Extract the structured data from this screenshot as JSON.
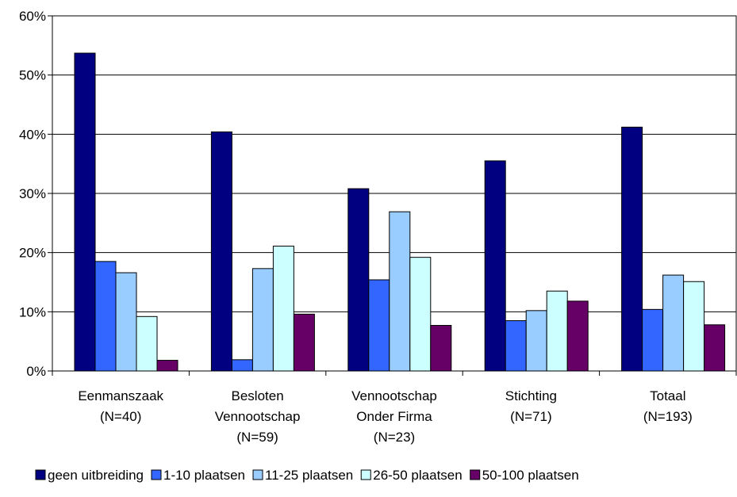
{
  "chart_data": {
    "type": "bar",
    "title": "",
    "xlabel": "",
    "ylabel": "",
    "ylim": [
      0,
      0.6
    ],
    "yticks": [
      {
        "value": 0.0,
        "label": "0%"
      },
      {
        "value": 0.1,
        "label": "10%"
      },
      {
        "value": 0.2,
        "label": "20%"
      },
      {
        "value": 0.3,
        "label": "30%"
      },
      {
        "value": 0.4,
        "label": "40%"
      },
      {
        "value": 0.5,
        "label": "50%"
      },
      {
        "value": 0.6,
        "label": "60%"
      }
    ],
    "grid": true,
    "legend_position": "bottom",
    "categories": [
      [
        "Eenmanszaak",
        "(N=40)"
      ],
      [
        "Besloten",
        "Vennootschap",
        "(N=59)"
      ],
      [
        "Vennootschap",
        "Onder Firma",
        "(N=23)"
      ],
      [
        "Stichting",
        "(N=71)"
      ],
      [
        "Totaal",
        "(N=193)"
      ]
    ],
    "series": [
      {
        "name": "geen uitbreiding",
        "color": "#000080",
        "values": [
          0.537,
          0.404,
          0.308,
          0.355,
          0.412
        ]
      },
      {
        "name": "1-10 plaatsen",
        "color": "#3366ff",
        "values": [
          0.185,
          0.019,
          0.154,
          0.085,
          0.104
        ]
      },
      {
        "name": "11-25 plaatsen",
        "color": "#99ccff",
        "values": [
          0.166,
          0.173,
          0.269,
          0.102,
          0.162
        ]
      },
      {
        "name": "26-50 plaatsen",
        "color": "#ccffff",
        "values": [
          0.092,
          0.211,
          0.192,
          0.135,
          0.151
        ]
      },
      {
        "name": "50-100 plaatsen",
        "color": "#660066",
        "values": [
          0.018,
          0.096,
          0.077,
          0.118,
          0.078
        ]
      }
    ]
  }
}
